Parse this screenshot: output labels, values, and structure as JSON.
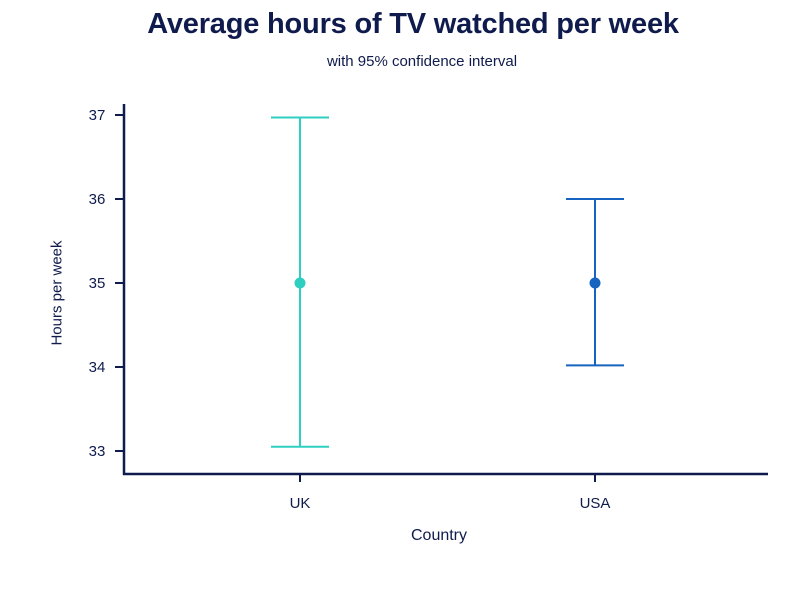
{
  "chart_data": {
    "type": "errorbar",
    "title": "Average hours of TV watched per week",
    "subtitle": "with 95% confidence interval",
    "xlabel": "Country",
    "ylabel": "Hours per week",
    "categories": [
      "UK",
      "USA"
    ],
    "values": [
      35,
      35
    ],
    "lower": [
      33.05,
      34.02
    ],
    "upper": [
      36.97,
      36.0
    ],
    "ylim": [
      32.72,
      37.15
    ],
    "yticks": [
      33,
      34,
      35,
      36,
      37
    ],
    "grid": false,
    "colors": [
      "#2ecfc0",
      "#1764c0"
    ],
    "axis_color": "#0f1b4c"
  }
}
